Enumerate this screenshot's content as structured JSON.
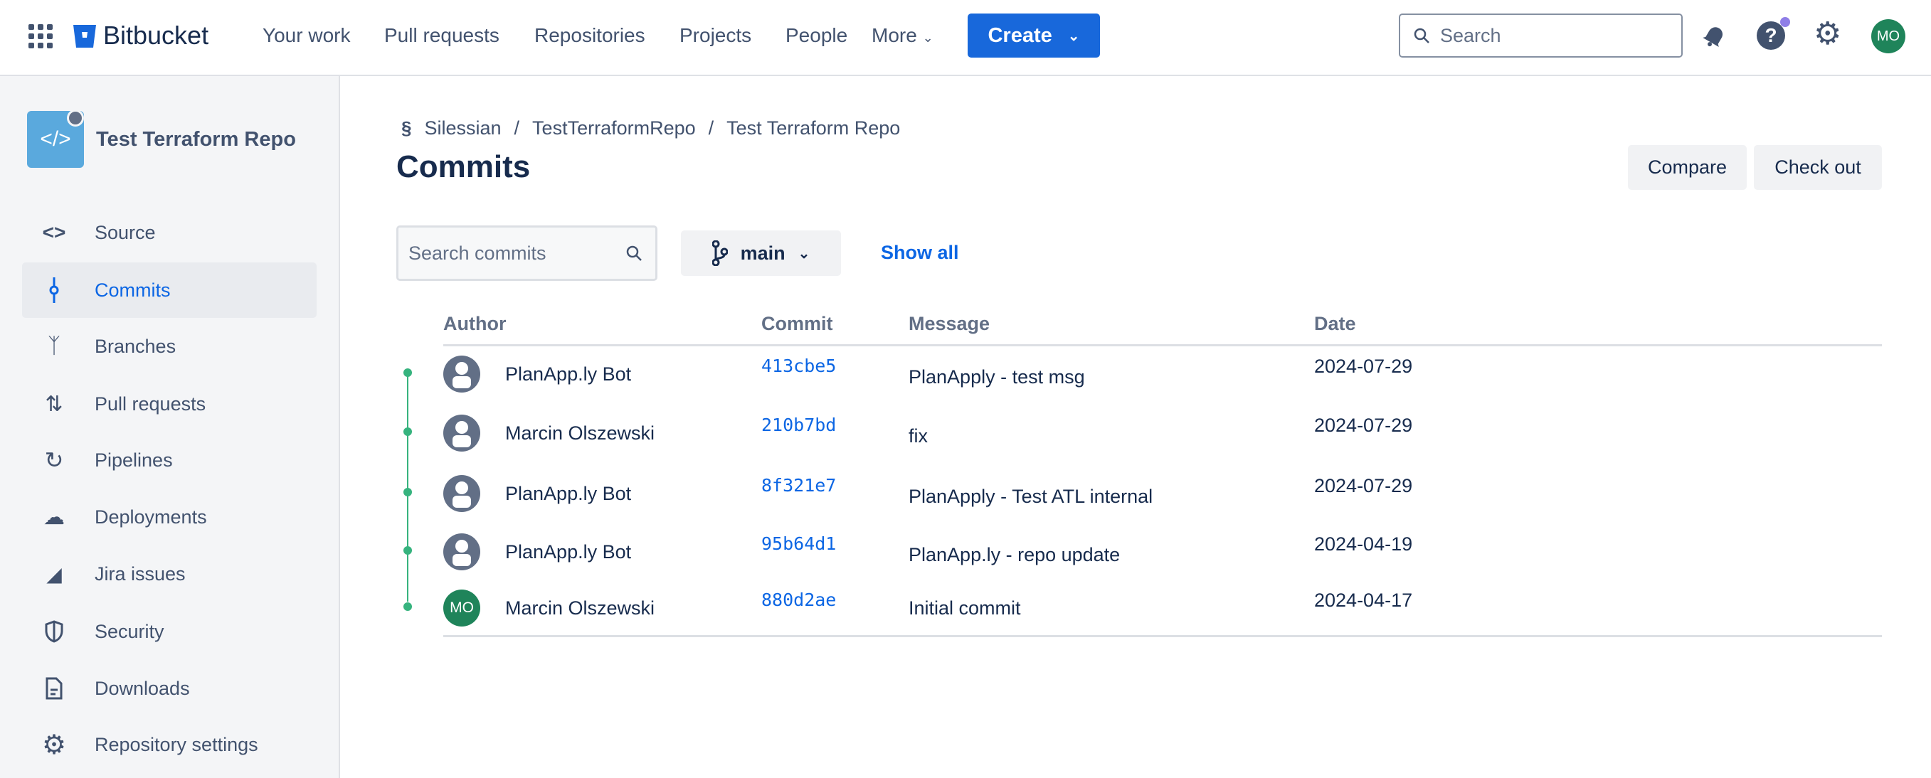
{
  "topbar": {
    "product": "Bitbucket",
    "nav": [
      "Your work",
      "Pull requests",
      "Repositories",
      "Projects",
      "People",
      "More"
    ],
    "create_label": "Create",
    "search_placeholder": "Search",
    "avatar_initials": "MO",
    "brand_color": "#1868db"
  },
  "sidebar": {
    "repo_name": "Test Terraform Repo",
    "items": [
      {
        "label": "Source",
        "icon": "code-icon"
      },
      {
        "label": "Commits",
        "icon": "commit-icon",
        "selected": true
      },
      {
        "label": "Branches",
        "icon": "branch-icon"
      },
      {
        "label": "Pull requests",
        "icon": "pull-request-icon"
      },
      {
        "label": "Pipelines",
        "icon": "pipelines-icon"
      },
      {
        "label": "Deployments",
        "icon": "cloud-upload-icon"
      },
      {
        "label": "Jira issues",
        "icon": "jira-icon"
      },
      {
        "label": "Security",
        "icon": "shield-icon"
      },
      {
        "label": "Downloads",
        "icon": "file-icon"
      },
      {
        "label": "Repository settings",
        "icon": "gear-icon"
      }
    ]
  },
  "main": {
    "breadcrumb": [
      "Silessian",
      "TestTerraformRepo",
      "Test Terraform Repo"
    ],
    "title": "Commits",
    "compare_label": "Compare",
    "checkout_label": "Check out",
    "search_placeholder": "Search commits",
    "branch": "main",
    "show_all": "Show all",
    "columns": [
      "Author",
      "Commit",
      "Message",
      "Date"
    ],
    "rows": [
      {
        "author": "PlanApp.ly Bot",
        "commit": "413cbe5",
        "message": "PlanApply - test msg",
        "date": "2024-07-29"
      },
      {
        "author": "Marcin Olszewski",
        "commit": "210b7bd",
        "message": "fix",
        "date": "2024-07-29"
      },
      {
        "author": "PlanApp.ly Bot",
        "commit": "8f321e7",
        "message": "PlanApply - Test ATL internal",
        "date": "2024-07-29"
      },
      {
        "author": "PlanApp.ly Bot",
        "commit": "95b64d1",
        "message": "PlanApp.ly - repo update",
        "date": "2024-04-19"
      },
      {
        "author": "Marcin Olszewski",
        "commit": "880d2ae",
        "message": "Initial commit",
        "date": "2024-04-17",
        "avatar_initials": "MO"
      }
    ]
  }
}
